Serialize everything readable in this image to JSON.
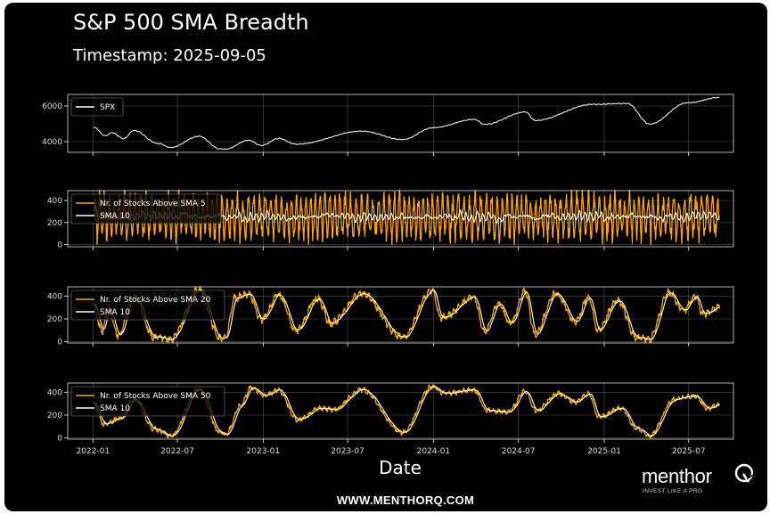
{
  "header": {
    "title": "S&P 500 SMA Breadth",
    "subtitle": "Timestamp: 2025-09-05"
  },
  "footer": {
    "url": "WWW.MENTHORQ.COM"
  },
  "brand": {
    "name": "menthor",
    "tagline": "INVEST LIKE A PRO",
    "logo_icon": "q-logo-icon"
  },
  "colors": {
    "background": "#000000",
    "spx": "#ffffff",
    "breadth": "#ffa500",
    "sma10": "#ffffff",
    "grid": "#555555"
  },
  "chart_data": [
    {
      "type": "line",
      "series": [
        {
          "name": "SPX",
          "color": "#ffffff",
          "points": [
            [
              "2022-01-03",
              4796
            ],
            [
              "2022-01-27",
              4326
            ],
            [
              "2022-02-10",
              4504
            ],
            [
              "2022-03-08",
              4170
            ],
            [
              "2022-03-29",
              4631
            ],
            [
              "2022-05-20",
              3901
            ],
            [
              "2022-06-16",
              3666
            ],
            [
              "2022-08-16",
              4305
            ],
            [
              "2022-09-30",
              3585
            ],
            [
              "2022-10-12",
              3577
            ],
            [
              "2022-11-30",
              4080
            ],
            [
              "2022-12-28",
              3783
            ],
            [
              "2023-02-02",
              4180
            ],
            [
              "2023-03-13",
              3855
            ],
            [
              "2023-07-31",
              4589
            ],
            [
              "2023-10-27",
              4117
            ],
            [
              "2023-12-29",
              4770
            ],
            [
              "2024-03-28",
              5254
            ],
            [
              "2024-04-19",
              4967
            ],
            [
              "2024-07-16",
              5667
            ],
            [
              "2024-08-05",
              5186
            ],
            [
              "2024-12-06",
              6090
            ],
            [
              "2025-02-19",
              6144
            ],
            [
              "2025-04-08",
              4983
            ],
            [
              "2025-06-27",
              6173
            ],
            [
              "2025-09-05",
              6482
            ]
          ]
        }
      ],
      "yticks": [
        4000,
        6000
      ],
      "ylim": [
        3400,
        6650
      ],
      "legend": "top-left",
      "grid": true
    },
    {
      "type": "line",
      "series": [
        {
          "name": "Nr. of Stocks Above SMA 5",
          "color": "#ffa500",
          "style": "oscillating",
          "mean": 255,
          "amplitude": 200,
          "period_days": 11
        },
        {
          "name": "SMA 10",
          "color": "#ffffff",
          "style": "smoothed"
        }
      ],
      "yticks": [
        0,
        200,
        400
      ],
      "ylim": [
        -20,
        490
      ],
      "legend": "top-left",
      "grid": true
    },
    {
      "type": "line",
      "series": [
        {
          "name": "Nr. of Stocks Above SMA 20",
          "color": "#ffa500",
          "points": [
            [
              "2022-01-03",
              320
            ],
            [
              "2022-01-20",
              90
            ],
            [
              "2022-02-03",
              300
            ],
            [
              "2022-02-24",
              60
            ],
            [
              "2022-03-29",
              400
            ],
            [
              "2022-05-12",
              40
            ],
            [
              "2022-06-17",
              20
            ],
            [
              "2022-08-16",
              460
            ],
            [
              "2022-09-30",
              30
            ],
            [
              "2022-10-12",
              40
            ],
            [
              "2022-11-01",
              380
            ],
            [
              "2022-12-01",
              420
            ],
            [
              "2022-12-28",
              190
            ],
            [
              "2023-02-02",
              410
            ],
            [
              "2023-03-13",
              100
            ],
            [
              "2023-04-28",
              380
            ],
            [
              "2023-05-25",
              160
            ],
            [
              "2023-07-31",
              420
            ],
            [
              "2023-10-27",
              40
            ],
            [
              "2023-12-29",
              450
            ],
            [
              "2024-01-17",
              210
            ],
            [
              "2024-03-28",
              390
            ],
            [
              "2024-04-19",
              90
            ],
            [
              "2024-05-20",
              330
            ],
            [
              "2024-06-14",
              160
            ],
            [
              "2024-07-16",
              440
            ],
            [
              "2024-08-05",
              70
            ],
            [
              "2024-09-19",
              420
            ],
            [
              "2024-10-31",
              180
            ],
            [
              "2024-11-29",
              390
            ],
            [
              "2024-12-18",
              100
            ],
            [
              "2025-01-29",
              360
            ],
            [
              "2025-03-13",
              30
            ],
            [
              "2025-04-08",
              25
            ],
            [
              "2025-05-20",
              430
            ],
            [
              "2025-06-20",
              270
            ],
            [
              "2025-07-15",
              400
            ],
            [
              "2025-08-01",
              240
            ],
            [
              "2025-09-05",
              300
            ]
          ]
        },
        {
          "name": "SMA 10",
          "color": "#ffffff",
          "style": "smoothed"
        }
      ],
      "yticks": [
        0,
        200,
        400
      ],
      "ylim": [
        -10,
        480
      ],
      "legend": "top-left",
      "grid": true
    },
    {
      "type": "line",
      "series": [
        {
          "name": "Nr. of Stocks Above SMA 50",
          "color": "#ffa500",
          "points": [
            [
              "2022-01-03",
              300
            ],
            [
              "2022-01-24",
              120
            ],
            [
              "2022-03-01",
              170
            ],
            [
              "2022-03-30",
              340
            ],
            [
              "2022-05-12",
              80
            ],
            [
              "2022-06-17",
              20
            ],
            [
              "2022-08-16",
              430
            ],
            [
              "2022-09-30",
              50
            ],
            [
              "2022-10-12",
              30
            ],
            [
              "2022-11-15",
              290
            ],
            [
              "2022-12-05",
              440
            ],
            [
              "2023-01-05",
              370
            ],
            [
              "2023-02-02",
              420
            ],
            [
              "2023-03-15",
              160
            ],
            [
              "2023-05-05",
              260
            ],
            [
              "2023-06-01",
              250
            ],
            [
              "2023-07-31",
              420
            ],
            [
              "2023-10-27",
              50
            ],
            [
              "2023-12-29",
              450
            ],
            [
              "2024-01-25",
              390
            ],
            [
              "2024-03-28",
              420
            ],
            [
              "2024-04-25",
              240
            ],
            [
              "2024-06-10",
              230
            ],
            [
              "2024-07-16",
              410
            ],
            [
              "2024-08-07",
              240
            ],
            [
              "2024-09-25",
              390
            ],
            [
              "2024-10-31",
              310
            ],
            [
              "2024-11-29",
              390
            ],
            [
              "2024-12-20",
              180
            ],
            [
              "2025-02-05",
              260
            ],
            [
              "2025-03-13",
              80
            ],
            [
              "2025-04-08",
              20
            ],
            [
              "2025-06-01",
              340
            ],
            [
              "2025-07-15",
              370
            ],
            [
              "2025-08-10",
              260
            ],
            [
              "2025-09-05",
              290
            ]
          ]
        },
        {
          "name": "SMA 10",
          "color": "#ffffff",
          "style": "smoothed"
        }
      ],
      "yticks": [
        0,
        200,
        400
      ],
      "ylim": [
        -10,
        480
      ],
      "legend": "top-left",
      "grid": true
    }
  ],
  "xaxis": {
    "label": "Date",
    "start": "2021-11-08",
    "end": "2025-10-05",
    "ticks": [
      "2022-01",
      "2022-07",
      "2023-01",
      "2023-07",
      "2024-01",
      "2024-07",
      "2025-01",
      "2025-07"
    ]
  }
}
